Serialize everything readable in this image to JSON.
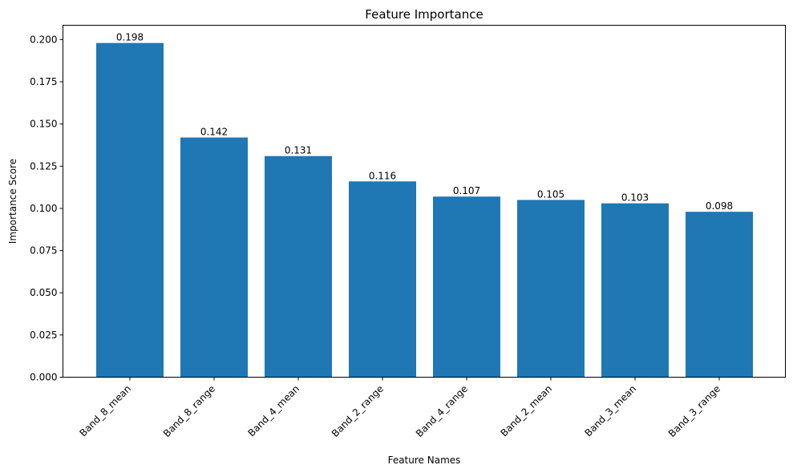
{
  "chart_data": {
    "type": "bar",
    "title": "Feature Importance",
    "xlabel": "Feature Names",
    "ylabel": "Importance Score",
    "categories": [
      "Band_8_mean",
      "Band_8_range",
      "Band_4_mean",
      "Band_2_range",
      "Band_4_range",
      "Band_2_mean",
      "Band_3_mean",
      "Band_3_range"
    ],
    "values": [
      0.198,
      0.142,
      0.131,
      0.116,
      0.107,
      0.105,
      0.103,
      0.098
    ],
    "data_labels": [
      "0.198",
      "0.142",
      "0.131",
      "0.116",
      "0.107",
      "0.105",
      "0.103",
      "0.098"
    ],
    "ylim": [
      0,
      0.2085
    ],
    "yticks": [
      0.0,
      0.025,
      0.05,
      0.075,
      0.1,
      0.125,
      0.15,
      0.175,
      0.2
    ],
    "ytick_labels": [
      "0.000",
      "0.025",
      "0.050",
      "0.075",
      "0.100",
      "0.125",
      "0.150",
      "0.175",
      "0.200"
    ],
    "grid": false,
    "bar_color": "#1f77b4"
  }
}
